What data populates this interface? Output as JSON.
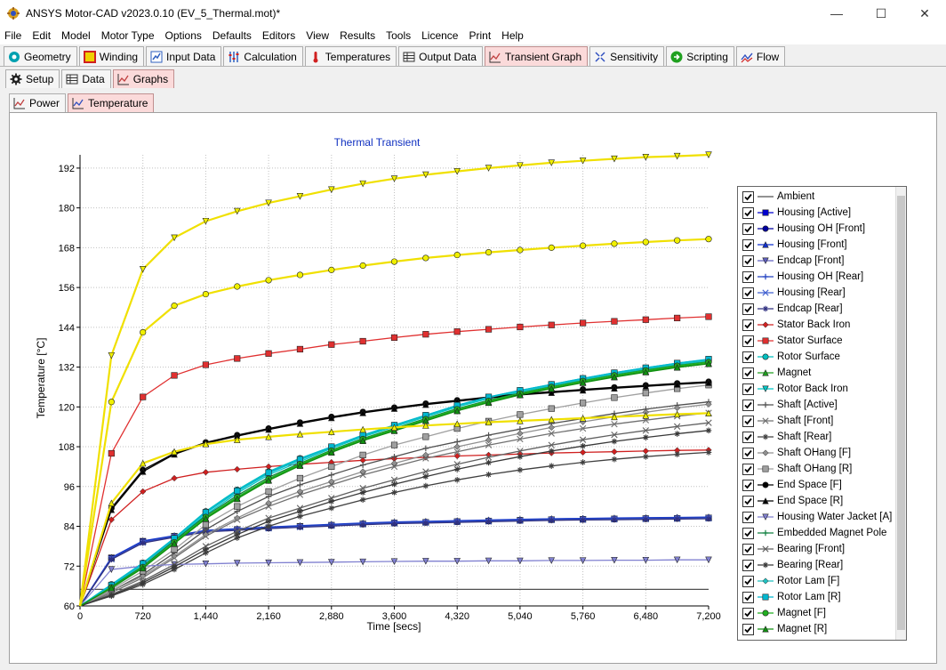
{
  "window": {
    "title": "ANSYS Motor-CAD v2023.0.10 (EV_5_Thermal.mot)*",
    "minimize_glyph": "—",
    "maximize_glyph": "☐",
    "close_glyph": "✕"
  },
  "menu": [
    "File",
    "Edit",
    "Model",
    "Motor Type",
    "Options",
    "Defaults",
    "Editors",
    "View",
    "Results",
    "Tools",
    "Licence",
    "Print",
    "Help"
  ],
  "main_tabs": [
    {
      "label": "Geometry",
      "icon": "geometry-icon",
      "color": "#00a0b0"
    },
    {
      "label": "Winding",
      "icon": "winding-icon",
      "color": "#e0c000"
    },
    {
      "label": "Input Data",
      "icon": "input-data-icon",
      "color": "#3060c0"
    },
    {
      "label": "Calculation",
      "icon": "calculation-icon",
      "color": "#3060c0"
    },
    {
      "label": "Temperatures",
      "icon": "thermometer-icon",
      "color": "#d02020"
    },
    {
      "label": "Output Data",
      "icon": "table-icon",
      "color": "#333333"
    },
    {
      "label": "Transient Graph",
      "icon": "graph-icon",
      "color": "#c04040",
      "active": true
    },
    {
      "label": "Sensitivity",
      "icon": "sensitivity-icon",
      "color": "#3050c0"
    },
    {
      "label": "Scripting",
      "icon": "scripting-icon",
      "color": "#20a020"
    },
    {
      "label": "Flow",
      "icon": "flow-icon",
      "color": "#3050c0"
    }
  ],
  "sub_tabs": [
    {
      "label": "Setup",
      "icon": "gear-icon"
    },
    {
      "label": "Data",
      "icon": "table-icon"
    },
    {
      "label": "Graphs",
      "icon": "graph-icon",
      "active": true
    }
  ],
  "graph_tabs": [
    {
      "label": "Power",
      "icon": "graph-icon"
    },
    {
      "label": "Temperature",
      "icon": "graph-icon",
      "active": true
    }
  ],
  "chart_data": {
    "type": "line",
    "title": "Thermal Transient",
    "xlabel": "Time [secs]",
    "ylabel": "Temperature [°C]",
    "xlim": [
      0,
      7200
    ],
    "ylim": [
      60,
      196
    ],
    "xticks": [
      0,
      720,
      1440,
      2160,
      2880,
      3600,
      4320,
      5040,
      5760,
      6480,
      7200
    ],
    "xtick_labels": [
      "0",
      "720",
      "1,440",
      "2,160",
      "2,880",
      "3,600",
      "4,320",
      "5,040",
      "5,760",
      "6,480",
      "7,200"
    ],
    "yticks": [
      60,
      72,
      84,
      96,
      108,
      120,
      132,
      144,
      156,
      168,
      180,
      192
    ],
    "grid": true,
    "legend_position": "right",
    "x": [
      0,
      360,
      720,
      1080,
      1440,
      1800,
      2160,
      2520,
      2880,
      3240,
      3600,
      3960,
      4320,
      4680,
      5040,
      5400,
      5760,
      6120,
      6480,
      6840,
      7200
    ],
    "series": [
      {
        "name": "Ambient",
        "color": "#505050",
        "marker": "none",
        "values": [
          65,
          65,
          65,
          65,
          65,
          65,
          65,
          65,
          65,
          65,
          65,
          65,
          65,
          65,
          65,
          65,
          65,
          65,
          65,
          65,
          65
        ]
      },
      {
        "name": "Housing [Active]",
        "color": "#0000d0",
        "marker": "square",
        "values": [
          60,
          74.5,
          79.5,
          81,
          82.5,
          83,
          83.5,
          84,
          84.3,
          84.7,
          85,
          85.2,
          85.4,
          85.6,
          85.8,
          86,
          86.1,
          86.2,
          86.3,
          86.4,
          86.5
        ]
      },
      {
        "name": "Housing OH [Front]",
        "color": "#0000a0",
        "marker": "circle",
        "values": [
          60,
          74.3,
          79.3,
          81,
          82.6,
          83.1,
          83.6,
          84,
          84.4,
          84.8,
          85.1,
          85.3,
          85.5,
          85.7,
          85.9,
          86.1,
          86.2,
          86.3,
          86.4,
          86.5,
          86.6
        ]
      },
      {
        "name": "Housing [Front]",
        "color": "#1030d0",
        "marker": "triangle",
        "values": [
          60,
          74.6,
          79.6,
          81.2,
          82.8,
          83.3,
          83.8,
          84.2,
          84.6,
          85,
          85.3,
          85.5,
          85.7,
          85.9,
          86.1,
          86.3,
          86.4,
          86.5,
          86.6,
          86.7,
          86.8
        ]
      },
      {
        "name": "Endcap [Front]",
        "color": "#6060c0",
        "marker": "triangle-down",
        "values": [
          60,
          74.2,
          79.2,
          80.9,
          82.5,
          83,
          83.5,
          83.9,
          84.3,
          84.7,
          85,
          85.2,
          85.4,
          85.6,
          85.8,
          86,
          86.1,
          86.2,
          86.3,
          86.4,
          86.5
        ]
      },
      {
        "name": "Housing OH [Rear]",
        "color": "#2040c0",
        "marker": "plus",
        "values": [
          60,
          74.4,
          79.4,
          81.1,
          82.7,
          83.2,
          83.7,
          84.1,
          84.5,
          84.9,
          85.2,
          85.4,
          85.6,
          85.8,
          86,
          86.2,
          86.3,
          86.4,
          86.5,
          86.6,
          86.7
        ]
      },
      {
        "name": "Housing [Rear]",
        "color": "#4060d0",
        "marker": "x",
        "values": [
          60,
          74.1,
          79.1,
          80.8,
          82.4,
          82.9,
          83.4,
          83.8,
          84.2,
          84.6,
          84.9,
          85.1,
          85.3,
          85.5,
          85.7,
          85.9,
          86,
          86.1,
          86.2,
          86.3,
          86.4
        ]
      },
      {
        "name": "Endcap [Rear]",
        "color": "#303080",
        "marker": "star",
        "values": [
          60,
          74,
          79,
          80.7,
          82.3,
          82.8,
          83.3,
          83.7,
          84.1,
          84.5,
          84.8,
          85,
          85.2,
          85.4,
          85.6,
          85.8,
          85.9,
          86,
          86.1,
          86.2,
          86.3
        ]
      },
      {
        "name": "Stator Back Iron",
        "color": "#d02020",
        "marker": "diamond",
        "values": [
          60,
          86,
          94.5,
          98.5,
          100.3,
          101.2,
          102,
          102.7,
          103.3,
          103.9,
          104.4,
          104.8,
          105.2,
          105.5,
          105.8,
          106.1,
          106.3,
          106.5,
          106.7,
          106.9,
          107
        ]
      },
      {
        "name": "Stator Surface",
        "color": "#e03030",
        "marker": "square",
        "values": [
          60,
          106,
          123,
          129.5,
          132.7,
          134.6,
          136.1,
          137.4,
          138.8,
          139.8,
          140.9,
          141.9,
          142.7,
          143.4,
          144.1,
          144.7,
          145.3,
          145.8,
          146.3,
          146.8,
          147.2
        ]
      },
      {
        "name": "Rotor Surface",
        "color": "#00c0c0",
        "marker": "circle",
        "values": [
          60,
          66.5,
          73,
          80.5,
          88.5,
          95,
          100.5,
          104.5,
          108,
          111.5,
          114.5,
          117.5,
          120.5,
          123,
          125,
          126.8,
          128.6,
          130.3,
          131.8,
          133.2,
          134.3
        ]
      },
      {
        "name": "Magnet",
        "color": "#20a020",
        "marker": "triangle",
        "values": [
          60,
          65.5,
          71.5,
          79,
          86.5,
          92.5,
          98,
          102.5,
          106.5,
          110,
          113,
          116,
          119,
          121.5,
          123.8,
          125.7,
          127.5,
          129.2,
          130.7,
          132.1,
          133.2
        ]
      },
      {
        "name": "Rotor Back Iron",
        "color": "#00c8c8",
        "marker": "triangle-down",
        "values": [
          60,
          66,
          72.5,
          80,
          87.5,
          94,
          99.5,
          103.5,
          107.5,
          111,
          114,
          117,
          120,
          122.5,
          124.5,
          126.4,
          128.2,
          129.9,
          131.4,
          132.8,
          133.9
        ]
      },
      {
        "name": "Shaft [Active]",
        "color": "#505050",
        "marker": "plus",
        "values": [
          60,
          64.5,
          69.5,
          76,
          83,
          88.5,
          93,
          96.5,
          99.5,
          102.5,
          105,
          107.5,
          109.5,
          111.5,
          113.3,
          115,
          116.5,
          118,
          119.3,
          120.5,
          121.5
        ]
      },
      {
        "name": "Shaft [Front]",
        "color": "#707070",
        "marker": "x",
        "values": [
          60,
          64,
          68.5,
          74.5,
          81,
          86,
          90,
          93.5,
          96.5,
          99.5,
          102,
          104.5,
          106.5,
          108.5,
          110.3,
          112,
          113.5,
          114.8,
          116,
          117.2,
          118.2
        ]
      },
      {
        "name": "Shaft [Rear]",
        "color": "#404040",
        "marker": "star",
        "values": [
          60,
          63,
          66.5,
          71,
          76,
          80.5,
          84,
          87,
          89.5,
          92,
          94.2,
          96.2,
          98,
          99.6,
          101,
          102.2,
          103.3,
          104.2,
          105,
          105.7,
          106.3
        ]
      },
      {
        "name": "Shaft OHang [F]",
        "color": "#909090",
        "marker": "diamond",
        "values": [
          60,
          64.5,
          69,
          75,
          81.5,
          86.5,
          91,
          94.5,
          97.5,
          100.5,
          103,
          105.5,
          108,
          110,
          112,
          113.8,
          115.5,
          117,
          118.4,
          119.7,
          120.8
        ]
      },
      {
        "name": "Shaft OHang [R]",
        "color": "#a0a0a0",
        "marker": "square",
        "values": [
          60,
          65,
          70.5,
          77,
          84.5,
          90,
          94.5,
          98.5,
          102,
          105.5,
          108.5,
          111,
          113.5,
          115.7,
          117.7,
          119.5,
          121.2,
          122.8,
          124.2,
          125.5,
          126.6
        ]
      },
      {
        "name": "End Space [F]",
        "color": "#000000",
        "marker": "circle",
        "values": [
          60,
          89.5,
          101,
          106,
          109.3,
          111.5,
          113.5,
          115.3,
          117,
          118.5,
          119.8,
          121,
          122,
          123,
          123.9,
          124.6,
          125.3,
          125.9,
          126.5,
          127.1,
          127.6
        ]
      },
      {
        "name": "End Space [R]",
        "color": "#000000",
        "marker": "triangle",
        "values": [
          60,
          89,
          100.5,
          105.7,
          109,
          111.2,
          113.2,
          115,
          116.7,
          118.2,
          119.5,
          120.7,
          121.7,
          122.7,
          123.6,
          124.3,
          125,
          125.6,
          126.2,
          126.8,
          127.3
        ]
      },
      {
        "name": "Housing Water Jacket [A]",
        "color": "#8080d0",
        "marker": "triangle-down",
        "values": [
          60,
          71,
          72,
          72.5,
          72.7,
          72.9,
          73,
          73.1,
          73.2,
          73.3,
          73.4,
          73.5,
          73.5,
          73.6,
          73.6,
          73.7,
          73.7,
          73.8,
          73.8,
          73.9,
          73.9
        ]
      },
      {
        "name": "Embedded Magnet Pole",
        "color": "#108040",
        "marker": "plus",
        "values": [
          60,
          65.8,
          72,
          79.7,
          87.2,
          93.3,
          98.8,
          103,
          107,
          110.5,
          113.5,
          116.5,
          119.5,
          122,
          124.2,
          126.1,
          127.9,
          129.6,
          131.1,
          132.5,
          133.6
        ]
      },
      {
        "name": "Bearing [Front]",
        "color": "#606060",
        "marker": "x",
        "values": [
          60,
          63.5,
          67.5,
          72.5,
          78,
          82.5,
          86.5,
          89.5,
          92.5,
          95.5,
          98,
          100.5,
          102.7,
          104.8,
          106.7,
          108.5,
          110.1,
          111.6,
          112.9,
          114.1,
          115.2
        ]
      },
      {
        "name": "Bearing [Rear]",
        "color": "#383838",
        "marker": "star",
        "values": [
          60,
          63.2,
          67,
          71.8,
          77,
          81.5,
          85.5,
          88.5,
          91.5,
          94.2,
          96.7,
          99,
          101.2,
          103.2,
          105,
          106.7,
          108.2,
          109.6,
          110.8,
          111.9,
          112.9
        ]
      },
      {
        "name": "Rotor Lam [F]",
        "color": "#20c0c0",
        "marker": "diamond",
        "values": [
          60,
          66.2,
          72.7,
          80.3,
          88,
          94.5,
          100,
          104,
          107.8,
          111.3,
          114.3,
          117.3,
          120.3,
          122.8,
          124.8,
          126.6,
          128.4,
          130.1,
          131.6,
          133,
          134.1
        ]
      },
      {
        "name": "Rotor Lam [R]",
        "color": "#00b8d0",
        "marker": "square",
        "values": [
          60,
          66.3,
          72.8,
          80.4,
          88.2,
          94.7,
          100.2,
          104.2,
          108,
          111.5,
          114.5,
          117.5,
          120.5,
          123,
          125,
          126.8,
          128.6,
          130.3,
          131.8,
          133.2,
          134.4
        ]
      },
      {
        "name": "Magnet [F]",
        "color": "#20b020",
        "marker": "circle",
        "values": [
          60,
          65.6,
          71.7,
          79.2,
          86.8,
          92.8,
          98.3,
          102.8,
          106.8,
          110.3,
          113.3,
          116.3,
          119.3,
          121.8,
          124,
          126,
          127.8,
          129.5,
          131,
          132.4,
          133.5
        ]
      },
      {
        "name": "Magnet [R]",
        "color": "#109010",
        "marker": "triangle",
        "values": [
          60,
          65.4,
          71.4,
          78.8,
          86.3,
          92.3,
          97.8,
          102.3,
          106.3,
          109.8,
          112.8,
          115.8,
          118.8,
          121.3,
          123.6,
          125.5,
          127.3,
          129,
          130.5,
          131.9,
          133
        ]
      },
      {
        "name": "",
        "color": "#f0e000",
        "marker": "triangle-down",
        "values": [
          60,
          135.5,
          161.5,
          171,
          176,
          179,
          181.5,
          183.5,
          185.5,
          187.3,
          188.8,
          190,
          191,
          192,
          192.8,
          193.6,
          194.2,
          194.8,
          195.3,
          195.6,
          196
        ]
      },
      {
        "name": "",
        "color": "#f0e000",
        "marker": "circle",
        "values": [
          60,
          121.5,
          142.5,
          150.5,
          154,
          156.3,
          158.2,
          159.8,
          161.3,
          162.6,
          163.8,
          164.9,
          165.8,
          166.6,
          167.3,
          168,
          168.6,
          169.2,
          169.7,
          170.2,
          170.6
        ]
      },
      {
        "name": "",
        "color": "#f0e000",
        "marker": "triangle",
        "values": [
          60,
          91,
          103,
          106.5,
          108.8,
          110.1,
          111,
          111.8,
          112.5,
          113.2,
          113.8,
          114.4,
          114.9,
          115.4,
          115.8,
          116.2,
          116.6,
          117,
          117.4,
          117.8,
          118.1
        ]
      }
    ]
  }
}
